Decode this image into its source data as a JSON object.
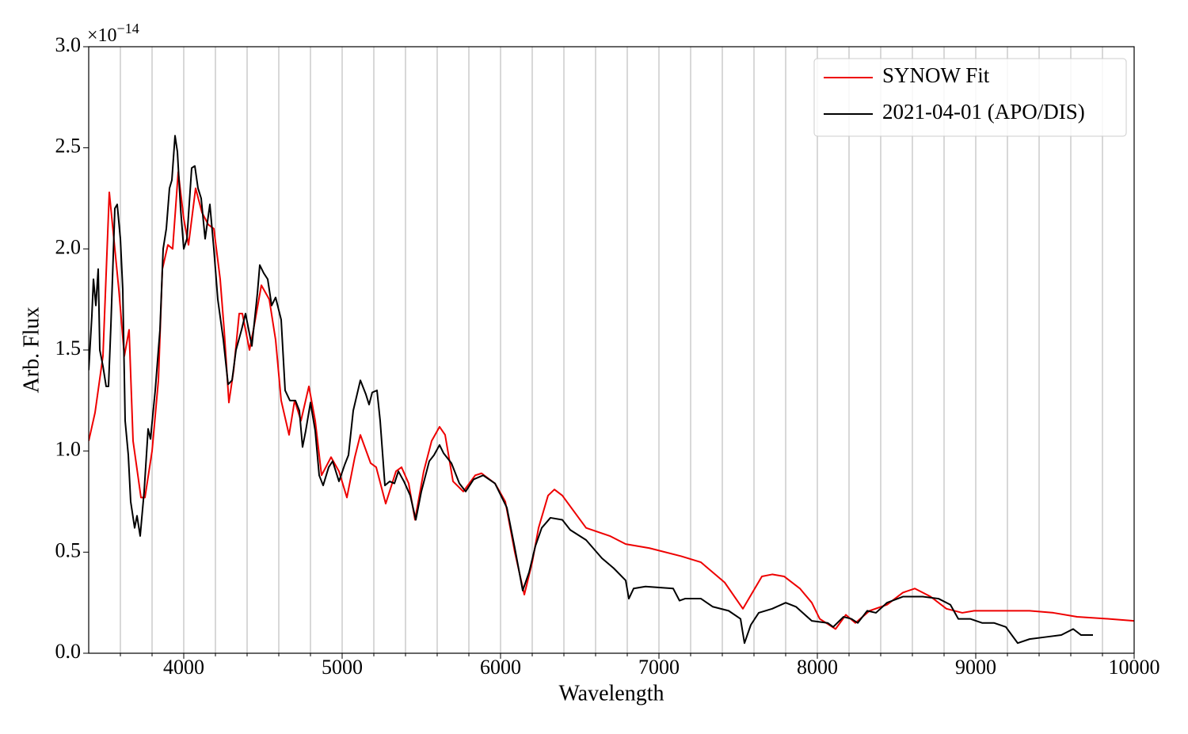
{
  "chart_data": {
    "type": "line",
    "ylabel": "Arb. Flux",
    "xlabel": "Wavelength",
    "y_offset_base": "×10",
    "y_offset_exponent": "−14",
    "xlim": [
      3400,
      10000
    ],
    "xticks": [
      4000,
      5000,
      6000,
      7000,
      8000,
      9000,
      10000
    ],
    "x_minor_ticks": [
      3600,
      3800,
      4200,
      4400,
      4600,
      4800,
      5200,
      5400,
      5600,
      5800,
      6200,
      6400,
      6600,
      6800,
      7200,
      7400,
      7600,
      7800,
      8200,
      8400,
      8600,
      8800,
      9200,
      9400,
      9600,
      9800
    ],
    "ylim": [
      0,
      3.0
    ],
    "yticks": [
      {
        "value": 0,
        "label": "0.0"
      },
      0.5,
      {
        "value": 1,
        "label": "1.0"
      },
      1.5,
      {
        "value": 2,
        "label": "2.0"
      },
      2.5,
      {
        "value": 3,
        "label": "3.0"
      }
    ],
    "grid": "x",
    "legend_loc": "upper right",
    "series": [
      {
        "name": "SYNOW Fit",
        "color": "#ee0000",
        "x": [
          3400,
          3440,
          3490,
          3530,
          3590,
          3625,
          3655,
          3680,
          3730,
          3755,
          3800,
          3840,
          3865,
          3900,
          3930,
          3965,
          4000,
          4030,
          4075,
          4115,
          4155,
          4190,
          4230,
          4255,
          4285,
          4315,
          4350,
          4370,
          4415,
          4440,
          4490,
          4540,
          4580,
          4615,
          4665,
          4700,
          4740,
          4790,
          4830,
          4870,
          4930,
          4980,
          5030,
          5080,
          5115,
          5180,
          5215,
          5275,
          5340,
          5375,
          5420,
          5460,
          5515,
          5565,
          5615,
          5650,
          5700,
          5765,
          5840,
          5880,
          5965,
          6030,
          6090,
          6150,
          6200,
          6240,
          6300,
          6340,
          6390,
          6540,
          6690,
          6790,
          6940,
          7140,
          7265,
          7340,
          7415,
          7530,
          7590,
          7650,
          7715,
          7790,
          7890,
          7965,
          8015,
          8115,
          8180,
          8240,
          8330,
          8440,
          8540,
          8615,
          8715,
          8815,
          8915,
          8990,
          9190,
          9340,
          9490,
          9640,
          9840,
          10000
        ],
        "values": [
          1.05,
          1.19,
          1.47,
          2.28,
          1.8,
          1.47,
          1.6,
          1.05,
          0.77,
          0.77,
          1.0,
          1.35,
          1.9,
          2.02,
          2.0,
          2.38,
          2.15,
          2.02,
          2.3,
          2.18,
          2.12,
          2.1,
          1.85,
          1.6,
          1.24,
          1.4,
          1.68,
          1.68,
          1.5,
          1.6,
          1.82,
          1.75,
          1.55,
          1.25,
          1.08,
          1.25,
          1.15,
          1.32,
          1.15,
          0.88,
          0.97,
          0.9,
          0.77,
          0.97,
          1.08,
          0.94,
          0.92,
          0.74,
          0.9,
          0.92,
          0.84,
          0.66,
          0.9,
          1.05,
          1.12,
          1.08,
          0.85,
          0.8,
          0.88,
          0.89,
          0.84,
          0.75,
          0.5,
          0.29,
          0.45,
          0.62,
          0.78,
          0.81,
          0.78,
          0.62,
          0.58,
          0.54,
          0.52,
          0.48,
          0.45,
          0.4,
          0.35,
          0.22,
          0.3,
          0.38,
          0.39,
          0.38,
          0.32,
          0.25,
          0.17,
          0.12,
          0.19,
          0.15,
          0.21,
          0.24,
          0.3,
          0.32,
          0.28,
          0.22,
          0.2,
          0.21,
          0.21,
          0.21,
          0.2,
          0.18,
          0.17,
          0.16
        ]
      },
      {
        "name": "2021-04-01 (APO/DIS)",
        "color": "#000000",
        "x": [
          3400,
          3420,
          3430,
          3445,
          3460,
          3470,
          3490,
          3510,
          3525,
          3540,
          3565,
          3580,
          3600,
          3615,
          3630,
          3650,
          3665,
          3690,
          3705,
          3725,
          3750,
          3775,
          3790,
          3820,
          3850,
          3870,
          3890,
          3910,
          3925,
          3945,
          3960,
          3980,
          4000,
          4020,
          4050,
          4070,
          4090,
          4110,
          4135,
          4165,
          4190,
          4215,
          4250,
          4280,
          4305,
          4330,
          4365,
          4390,
          4430,
          4465,
          4480,
          4505,
          4530,
          4555,
          4580,
          4615,
          4640,
          4670,
          4705,
          4730,
          4750,
          4770,
          4800,
          4830,
          4855,
          4880,
          4915,
          4940,
          4980,
          5015,
          5040,
          5070,
          5115,
          5150,
          5170,
          5190,
          5220,
          5240,
          5270,
          5300,
          5330,
          5355,
          5390,
          5430,
          5465,
          5500,
          5550,
          5580,
          5615,
          5640,
          5690,
          5740,
          5780,
          5830,
          5890,
          5965,
          6040,
          6090,
          6140,
          6180,
          6220,
          6260,
          6315,
          6390,
          6440,
          6540,
          6640,
          6715,
          6790,
          6810,
          6840,
          6915,
          7090,
          7130,
          7165,
          7265,
          7340,
          7440,
          7515,
          7540,
          7580,
          7630,
          7715,
          7800,
          7865,
          7965,
          8065,
          8100,
          8165,
          8215,
          8255,
          8315,
          8370,
          8440,
          8540,
          8665,
          8765,
          8840,
          8890,
          8965,
          9040,
          9115,
          9190,
          9265,
          9340,
          9440,
          9540,
          9615,
          9665,
          9740
        ],
        "values": [
          1.4,
          1.67,
          1.85,
          1.72,
          1.9,
          1.5,
          1.42,
          1.32,
          1.32,
          1.62,
          2.2,
          2.22,
          2.05,
          1.8,
          1.15,
          0.98,
          0.75,
          0.62,
          0.68,
          0.58,
          0.8,
          1.11,
          1.06,
          1.3,
          1.6,
          2.0,
          2.1,
          2.3,
          2.34,
          2.56,
          2.48,
          2.2,
          2.0,
          2.05,
          2.4,
          2.41,
          2.3,
          2.25,
          2.05,
          2.22,
          2.0,
          1.75,
          1.55,
          1.33,
          1.35,
          1.5,
          1.6,
          1.68,
          1.52,
          1.78,
          1.92,
          1.88,
          1.85,
          1.72,
          1.76,
          1.65,
          1.3,
          1.25,
          1.25,
          1.2,
          1.02,
          1.1,
          1.24,
          1.1,
          0.88,
          0.83,
          0.92,
          0.95,
          0.85,
          0.93,
          0.98,
          1.2,
          1.35,
          1.28,
          1.23,
          1.29,
          1.3,
          1.15,
          0.83,
          0.85,
          0.84,
          0.9,
          0.85,
          0.78,
          0.66,
          0.8,
          0.95,
          0.98,
          1.03,
          0.99,
          0.94,
          0.84,
          0.8,
          0.86,
          0.88,
          0.84,
          0.72,
          0.52,
          0.31,
          0.4,
          0.53,
          0.62,
          0.67,
          0.66,
          0.61,
          0.56,
          0.47,
          0.42,
          0.36,
          0.27,
          0.32,
          0.33,
          0.32,
          0.26,
          0.27,
          0.27,
          0.23,
          0.21,
          0.17,
          0.05,
          0.14,
          0.2,
          0.22,
          0.25,
          0.23,
          0.16,
          0.15,
          0.13,
          0.18,
          0.17,
          0.15,
          0.21,
          0.2,
          0.25,
          0.28,
          0.28,
          0.27,
          0.24,
          0.17,
          0.17,
          0.15,
          0.15,
          0.13,
          0.05,
          0.07,
          0.08,
          0.09,
          0.12,
          0.09,
          0.09
        ]
      }
    ]
  }
}
